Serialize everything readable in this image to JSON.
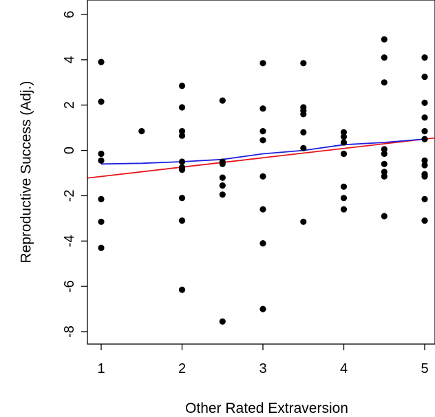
{
  "chart_data": {
    "type": "scatter",
    "title": "",
    "xlabel": "Other Rated Extraversion",
    "ylabel": "Reproductive Success (Adj.)",
    "xlim": [
      1,
      5
    ],
    "ylim": [
      -8,
      6
    ],
    "xticks": [
      "1",
      "2",
      "3",
      "4",
      "5"
    ],
    "yticks": [
      "-8",
      "-6",
      "-4",
      "-2",
      "0",
      "2",
      "4",
      "6"
    ],
    "grid": false,
    "legend": "none",
    "point_color": "#000000",
    "points": [
      [
        1,
        3.9
      ],
      [
        1,
        2.15
      ],
      [
        1,
        -0.15
      ],
      [
        1,
        -0.45
      ],
      [
        1,
        -2.15
      ],
      [
        1,
        -3.15
      ],
      [
        1,
        -4.3
      ],
      [
        1.5,
        0.85
      ],
      [
        2,
        2.85
      ],
      [
        2,
        1.9
      ],
      [
        2,
        0.85
      ],
      [
        2,
        0.65
      ],
      [
        2,
        -0.5
      ],
      [
        2,
        -0.75
      ],
      [
        2,
        -0.85
      ],
      [
        2,
        -2.1
      ],
      [
        2,
        -3.1
      ],
      [
        2,
        -6.15
      ],
      [
        2.5,
        2.2
      ],
      [
        2.5,
        -0.5
      ],
      [
        2.5,
        -0.6
      ],
      [
        2.5,
        -1.2
      ],
      [
        2.5,
        -1.55
      ],
      [
        2.5,
        -1.95
      ],
      [
        2.5,
        -7.55
      ],
      [
        3,
        3.85
      ],
      [
        3,
        1.85
      ],
      [
        3,
        0.85
      ],
      [
        3,
        0.45
      ],
      [
        3,
        -1.15
      ],
      [
        3,
        -2.6
      ],
      [
        3,
        -4.1
      ],
      [
        3,
        -7.0
      ],
      [
        3.5,
        3.85
      ],
      [
        3.5,
        1.9
      ],
      [
        3.5,
        1.75
      ],
      [
        3.5,
        1.6
      ],
      [
        3.5,
        0.8
      ],
      [
        3.5,
        0.1
      ],
      [
        3.5,
        -3.15
      ],
      [
        4,
        0.8
      ],
      [
        4,
        0.6
      ],
      [
        4,
        0.35
      ],
      [
        4,
        -0.15
      ],
      [
        4,
        -1.6
      ],
      [
        4,
        -2.1
      ],
      [
        4,
        -2.6
      ],
      [
        4.5,
        4.9
      ],
      [
        4.5,
        4.1
      ],
      [
        4.5,
        3.0
      ],
      [
        4.5,
        0.05
      ],
      [
        4.5,
        -0.15
      ],
      [
        4.5,
        -0.6
      ],
      [
        4.5,
        -0.95
      ],
      [
        4.5,
        -1.15
      ],
      [
        4.5,
        -2.9
      ],
      [
        5,
        4.1
      ],
      [
        5,
        3.25
      ],
      [
        5,
        2.1
      ],
      [
        5,
        1.45
      ],
      [
        5,
        0.85
      ],
      [
        5,
        0.5
      ],
      [
        5,
        -0.45
      ],
      [
        5,
        -0.65
      ],
      [
        5,
        -1.05
      ],
      [
        5,
        -1.15
      ],
      [
        5,
        -2.15
      ],
      [
        5,
        -3.1
      ]
    ],
    "fit_lines": [
      {
        "method": "linear",
        "color": "#e8141a",
        "points": [
          [
            0.76,
            -1.25
          ],
          [
            5.12,
            0.55
          ]
        ]
      },
      {
        "method": "smooth",
        "color": "#1f1fe0",
        "points": [
          [
            1,
            -0.6
          ],
          [
            1.5,
            -0.57
          ],
          [
            2,
            -0.5
          ],
          [
            2.5,
            -0.4
          ],
          [
            3,
            -0.15
          ],
          [
            3.5,
            0.0
          ],
          [
            4,
            0.25
          ],
          [
            4.5,
            0.35
          ],
          [
            5,
            0.5
          ]
        ]
      }
    ]
  }
}
